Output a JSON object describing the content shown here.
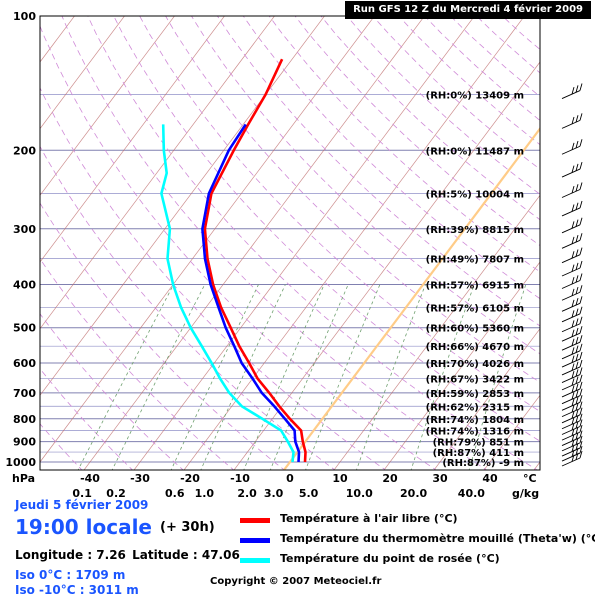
{
  "header": {
    "title": "Run GFS 12 Z du Mercredi 4 février 2009"
  },
  "footer": {
    "date": "Jeudi 5 février 2009",
    "time": "19:00 locale",
    "echeance": "(+ 30h)",
    "longitude_label": "Longitude : 7.26",
    "latitude_label": "Latitude : 47.06",
    "iso0": "Iso 0°C : 1709 m",
    "iso_minus10": "Iso -10°C : 3011 m",
    "copyright": "Copyright © 2007 Meteociel.fr"
  },
  "legend": [
    {
      "label": "Température à l'air libre (°C)",
      "color": "#ff0000"
    },
    {
      "label": "Température du thermomètre mouillé (Theta'w) (°C)",
      "color": "#0000ff"
    },
    {
      "label": "Température du point de rosée (°C)",
      "color": "#00ffff"
    }
  ],
  "chart_data": {
    "type": "line",
    "subtype": "skew-T log-P sounding",
    "y_axis_label": "hPa",
    "x_axis_unit": "°C",
    "mixing_ratio_unit": "g/kg",
    "pressure_ticks": [
      100,
      200,
      300,
      400,
      500,
      600,
      700,
      800,
      900,
      1000
    ],
    "temperature_ticks": [
      -40,
      -30,
      -20,
      -10,
      0,
      10,
      20,
      30,
      40
    ],
    "mixing_ratio_ticks": [
      "0.1",
      "0.2",
      "0.6",
      "1.0",
      "2.0",
      "3.0",
      "5.0",
      "10.0",
      "20.0",
      "40.0"
    ],
    "xlim": [
      -40,
      40
    ],
    "ylim": [
      1000,
      100
    ],
    "log_scale_y": true,
    "levels": [
      {
        "rh": "(RH:0%)",
        "height": "13409 m",
        "p": 150
      },
      {
        "rh": "(RH:0%)",
        "height": "11487 m",
        "p": 200
      },
      {
        "rh": "(RH:5%)",
        "height": "10004 m",
        "p": 250
      },
      {
        "rh": "(RH:39%)",
        "height": "8815 m",
        "p": 300
      },
      {
        "rh": "(RH:49%)",
        "height": "7807 m",
        "p": 350
      },
      {
        "rh": "(RH:57%)",
        "height": "6915 m",
        "p": 400
      },
      {
        "rh": "(RH:57%)",
        "height": "6105 m",
        "p": 450
      },
      {
        "rh": "(RH:60%)",
        "height": "5360 m",
        "p": 500
      },
      {
        "rh": "(RH:66%)",
        "height": "4670 m",
        "p": 550
      },
      {
        "rh": "(RH:70%)",
        "height": "4026 m",
        "p": 600
      },
      {
        "rh": "(RH:67%)",
        "height": "3422 m",
        "p": 650
      },
      {
        "rh": "(RH:59%)",
        "height": "2853 m",
        "p": 700
      },
      {
        "rh": "(RH:62%)",
        "height": "2315 m",
        "p": 750
      },
      {
        "rh": "(RH:74%)",
        "height": "1804 m",
        "p": 800
      },
      {
        "rh": "(RH:74%)",
        "height": "1316 m",
        "p": 850
      },
      {
        "rh": "(RH:79%)",
        "height": "851 m",
        "p": 900
      },
      {
        "rh": "(RH:87%)",
        "height": "411 m",
        "p": 950
      },
      {
        "rh": "(RH:87%)",
        "height": "-9 m",
        "p": 1000
      }
    ],
    "series": [
      {
        "name": "Température à l'air libre (°C)",
        "color": "#ff0000",
        "points": [
          {
            "p": 1000,
            "t": 3
          },
          {
            "p": 950,
            "t": 1.6
          },
          {
            "p": 900,
            "t": -0.5
          },
          {
            "p": 850,
            "t": -2.5
          },
          {
            "p": 800,
            "t": -6.5
          },
          {
            "p": 750,
            "t": -10.5
          },
          {
            "p": 700,
            "t": -14.5
          },
          {
            "p": 650,
            "t": -19
          },
          {
            "p": 600,
            "t": -23
          },
          {
            "p": 550,
            "t": -27.5
          },
          {
            "p": 500,
            "t": -32
          },
          {
            "p": 450,
            "t": -37
          },
          {
            "p": 400,
            "t": -42
          },
          {
            "p": 350,
            "t": -47
          },
          {
            "p": 300,
            "t": -52
          },
          {
            "p": 250,
            "t": -56
          },
          {
            "p": 200,
            "t": -58
          },
          {
            "p": 175,
            "t": -59
          },
          {
            "p": 150,
            "t": -60
          },
          {
            "p": 125,
            "t": -62
          }
        ]
      },
      {
        "name": "Température du thermomètre mouillé (Theta'w) (°C)",
        "color": "#0000ff",
        "points": [
          {
            "p": 1000,
            "t": 1.7
          },
          {
            "p": 950,
            "t": 0.3
          },
          {
            "p": 900,
            "t": -2.0
          },
          {
            "p": 850,
            "t": -3.8
          },
          {
            "p": 800,
            "t": -7.5
          },
          {
            "p": 750,
            "t": -11.5
          },
          {
            "p": 700,
            "t": -16
          },
          {
            "p": 650,
            "t": -20
          },
          {
            "p": 600,
            "t": -24.5
          },
          {
            "p": 550,
            "t": -28.5
          },
          {
            "p": 500,
            "t": -33
          },
          {
            "p": 450,
            "t": -37.5
          },
          {
            "p": 400,
            "t": -42.5
          },
          {
            "p": 350,
            "t": -47.5
          },
          {
            "p": 300,
            "t": -52.5
          },
          {
            "p": 250,
            "t": -56.5
          },
          {
            "p": 200,
            "t": -59
          },
          {
            "p": 175,
            "t": -59.5
          }
        ]
      },
      {
        "name": "Température du point de rosée (°C)",
        "color": "#00ffff",
        "points": [
          {
            "p": 1000,
            "t": 0.5
          },
          {
            "p": 950,
            "t": -0.8
          },
          {
            "p": 900,
            "t": -3.5
          },
          {
            "p": 850,
            "t": -6.5
          },
          {
            "p": 800,
            "t": -12
          },
          {
            "p": 750,
            "t": -18
          },
          {
            "p": 700,
            "t": -22.5
          },
          {
            "p": 650,
            "t": -26.5
          },
          {
            "p": 600,
            "t": -30.5
          },
          {
            "p": 550,
            "t": -35
          },
          {
            "p": 500,
            "t": -40
          },
          {
            "p": 450,
            "t": -45
          },
          {
            "p": 400,
            "t": -50
          },
          {
            "p": 350,
            "t": -55
          },
          {
            "p": 300,
            "t": -59
          },
          {
            "p": 250,
            "t": -66
          },
          {
            "p": 225,
            "t": -68
          },
          {
            "p": 200,
            "t": -72
          },
          {
            "p": 175,
            "t": -76
          }
        ]
      }
    ],
    "iso0_line": {
      "color": "#ffcc88",
      "label": "Iso 0°C"
    },
    "wind_barbs": [
      {
        "p": 150
      },
      {
        "p": 175
      },
      {
        "p": 200
      },
      {
        "p": 225
      },
      {
        "p": 250
      },
      {
        "p": 275
      },
      {
        "p": 300
      },
      {
        "p": 325
      },
      {
        "p": 350
      },
      {
        "p": 375
      },
      {
        "p": 400
      },
      {
        "p": 425
      },
      {
        "p": 450
      },
      {
        "p": 475
      },
      {
        "p": 500
      },
      {
        "p": 525
      },
      {
        "p": 550
      },
      {
        "p": 575
      },
      {
        "p": 600
      },
      {
        "p": 625
      },
      {
        "p": 650
      },
      {
        "p": 675
      },
      {
        "p": 700
      },
      {
        "p": 725
      },
      {
        "p": 750
      },
      {
        "p": 775
      },
      {
        "p": 800
      },
      {
        "p": 825
      },
      {
        "p": 850
      },
      {
        "p": 875
      },
      {
        "p": 900
      },
      {
        "p": 925
      },
      {
        "p": 950
      },
      {
        "p": 975
      },
      {
        "p": 1000
      }
    ]
  }
}
